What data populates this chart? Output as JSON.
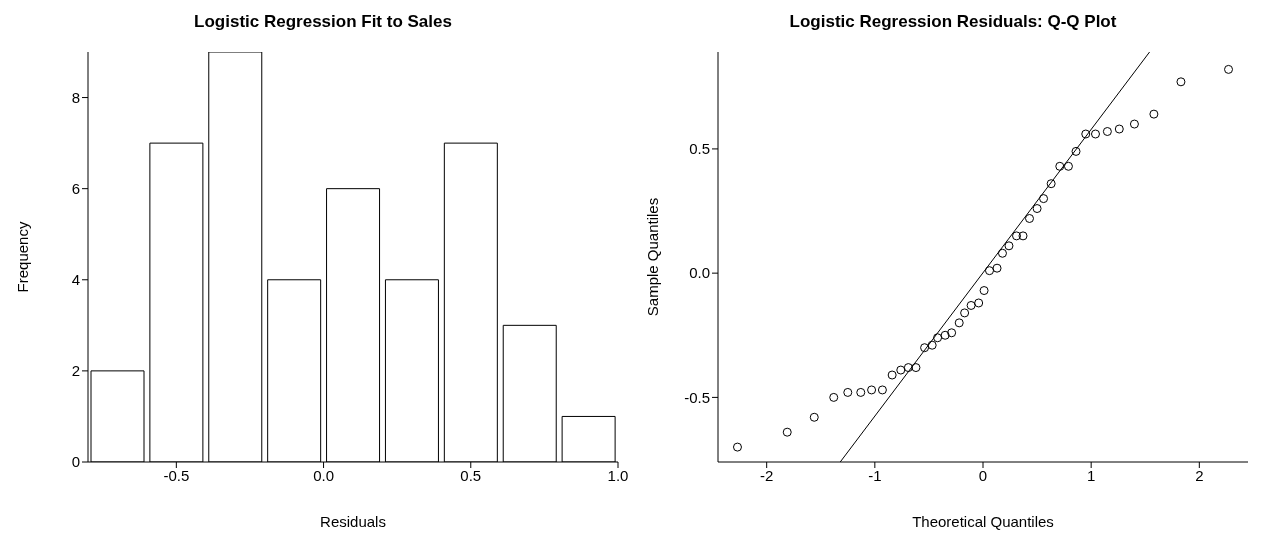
{
  "chart_data": [
    {
      "type": "histogram",
      "title": "Logistic Regression Fit to Sales",
      "xlabel": "Residuals",
      "ylabel": "Frequency",
      "bins": [
        -0.8,
        -0.6,
        -0.4,
        -0.2,
        0.0,
        0.2,
        0.4,
        0.6,
        0.8,
        1.0
      ],
      "values": [
        2,
        7,
        9,
        4,
        6,
        4,
        7,
        3,
        1
      ],
      "color": "#ffffff",
      "xlim": [
        -0.8,
        1.0
      ],
      "xticks": [
        -0.5,
        {
          "value": 0,
          "label": "0.0"
        },
        0.5,
        {
          "value": 1,
          "label": "1.0"
        }
      ],
      "ylim": [
        0,
        9
      ],
      "yticks": [
        0,
        2,
        4,
        6,
        8
      ]
    },
    {
      "type": "scatter",
      "title": "Logistic Regression Residuals: Q-Q Plot",
      "xlabel": "Theoretical Quantiles",
      "ylabel": "Sample Quantiles",
      "xlim": [
        -2.45,
        2.45
      ],
      "xticks": [
        -2,
        -1,
        0,
        1,
        2
      ],
      "ylim": [
        -0.76,
        0.89
      ],
      "yticks": [
        -0.5,
        {
          "value": 0,
          "label": "0.0"
        },
        0.5
      ],
      "marker": "circle",
      "series": [
        {
          "color": "#000000",
          "x": [
            -2.27,
            -1.81,
            -1.56,
            -1.38,
            -1.25,
            -1.13,
            -1.03,
            -0.93,
            -0.84,
            -0.76,
            -0.69,
            -0.62,
            -0.54,
            -0.47,
            -0.42,
            -0.35,
            -0.29,
            -0.22,
            -0.17,
            -0.11,
            -0.04,
            0.01,
            0.06,
            0.13,
            0.18,
            0.24,
            0.31,
            0.37,
            0.43,
            0.5,
            0.56,
            0.63,
            0.71,
            0.79,
            0.86,
            0.95,
            1.04,
            1.15,
            1.26,
            1.4,
            1.58,
            1.83,
            2.27
          ],
          "values": [
            -0.7,
            -0.64,
            -0.58,
            -0.5,
            -0.48,
            -0.48,
            -0.47,
            -0.47,
            -0.41,
            -0.39,
            -0.38,
            -0.38,
            -0.3,
            -0.29,
            -0.26,
            -0.25,
            -0.24,
            -0.2,
            -0.16,
            -0.13,
            -0.12,
            -0.07,
            0.01,
            0.02,
            0.08,
            0.11,
            0.15,
            0.15,
            0.22,
            0.26,
            0.3,
            0.36,
            0.43,
            0.43,
            0.49,
            0.56,
            0.56,
            0.57,
            0.58,
            0.6,
            0.64,
            0.77,
            0.82
          ]
        },
        {
          "type": "line",
          "color": "#000000",
          "x": [
            -1.32,
            1.54
          ],
          "values": [
            -0.76,
            0.89
          ],
          "marker": "none"
        }
      ]
    }
  ]
}
